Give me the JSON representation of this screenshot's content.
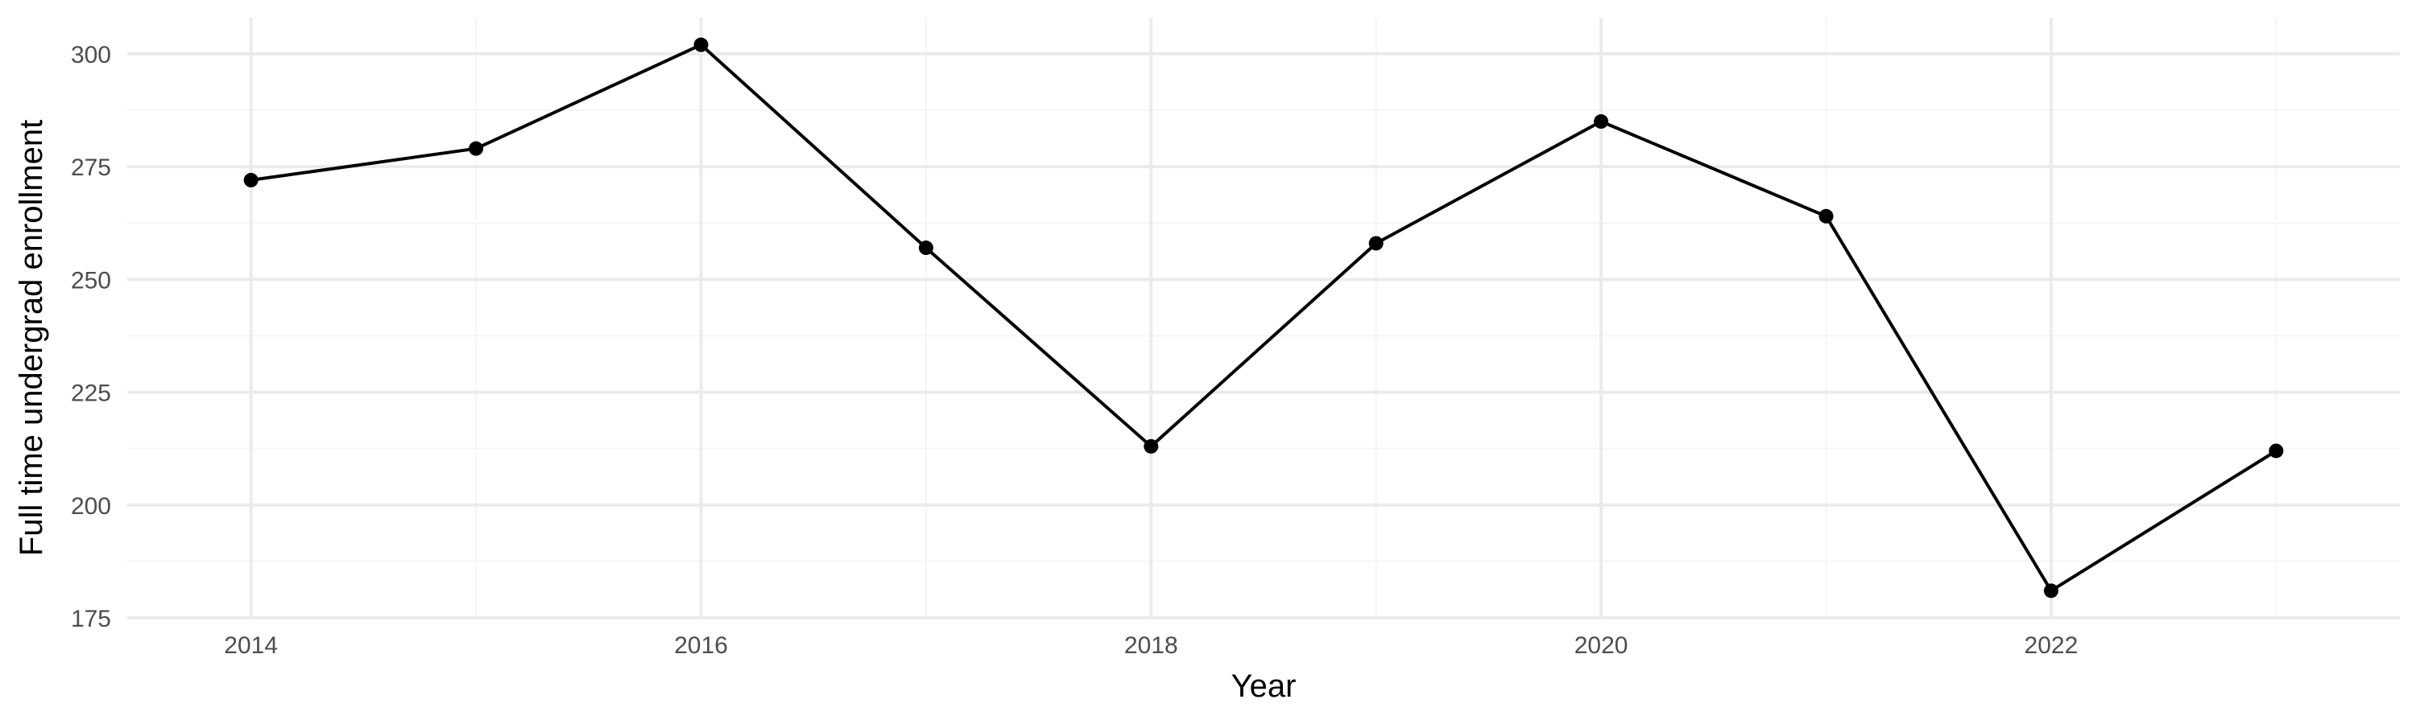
{
  "chart_data": {
    "type": "line",
    "title": "",
    "xlabel": "Year",
    "ylabel": "Full time undergrad enrollment",
    "x": [
      2014,
      2015,
      2016,
      2017,
      2018,
      2019,
      2020,
      2021,
      2022,
      2023
    ],
    "series": [
      {
        "values": [
          272,
          279,
          302,
          257,
          213,
          258,
          285,
          264,
          181,
          212
        ]
      }
    ],
    "xlim": [
      2013.45,
      2023.55
    ],
    "ylim": [
      175,
      308
    ],
    "x_ticks": [
      2014,
      2016,
      2018,
      2020,
      2022
    ],
    "x_minor_ticks": [
      2015,
      2017,
      2019,
      2021,
      2023
    ],
    "y_ticks": [
      175,
      200,
      225,
      250,
      275,
      300
    ],
    "y_minor_ticks": [
      187.5,
      212.5,
      237.5,
      262.5,
      287.5
    ],
    "grid": true,
    "legend": "none",
    "colors": {
      "line": "#000000",
      "points": "#000000",
      "grid_major": "#ebebeb",
      "grid_minor": "#f5f5f5",
      "tick_text": "#4d4d4d"
    }
  }
}
